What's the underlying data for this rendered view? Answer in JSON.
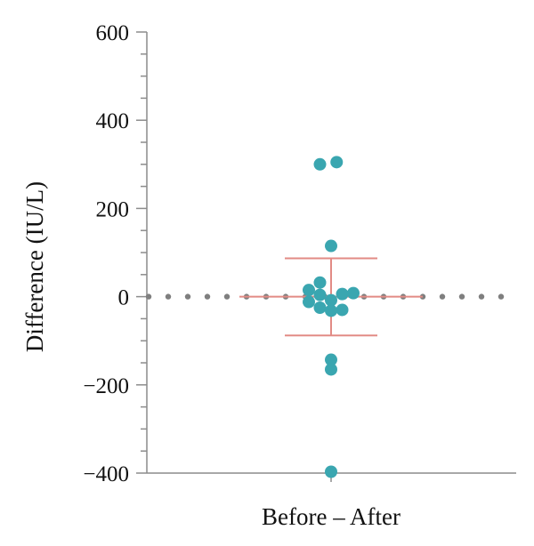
{
  "chart_data": {
    "type": "scatter",
    "title": "",
    "xlabel": "Before – After",
    "ylabel": "Difference (IU/L)",
    "ylim": [
      -400,
      600
    ],
    "y_ticks": [
      600,
      400,
      200,
      0,
      -200,
      -400
    ],
    "y_tick_labels": [
      "600",
      "400",
      "200",
      "0",
      "−200",
      "−400"
    ],
    "grid": false,
    "reference_line": {
      "y": 0,
      "style": "dotted",
      "color": "#7f7f7f"
    },
    "series": [
      {
        "color": "#3aa6b0",
        "points": [
          {
            "x": -0.5,
            "y": 300
          },
          {
            "x": 0.25,
            "y": 305
          },
          {
            "x": 0.0,
            "y": 115
          },
          {
            "x": -0.5,
            "y": 32
          },
          {
            "x": -1.0,
            "y": 15
          },
          {
            "x": -0.5,
            "y": 4
          },
          {
            "x": 0.5,
            "y": 6
          },
          {
            "x": 1.0,
            "y": 8
          },
          {
            "x": -1.0,
            "y": -12
          },
          {
            "x": 0.0,
            "y": -8
          },
          {
            "x": -0.5,
            "y": -25
          },
          {
            "x": 0.0,
            "y": -32
          },
          {
            "x": 0.5,
            "y": -30
          },
          {
            "x": 0.0,
            "y": -143
          },
          {
            "x": 0.0,
            "y": -165
          },
          {
            "x": 0.0,
            "y": -397
          }
        ]
      }
    ],
    "summary": {
      "mean": 0,
      "sd_upper": 87,
      "sd_lower": -88,
      "color": "#e28b85"
    }
  }
}
